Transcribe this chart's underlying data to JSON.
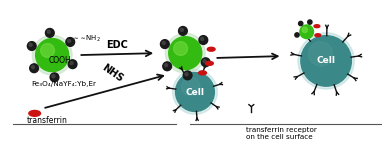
{
  "bg_color": "#ffffff",
  "np_green": "#33bb11",
  "np_green_hi": "#77dd44",
  "np_sat_color": "#1a1a1a",
  "np_sat_hi": "#444444",
  "np_glow": "#bbddbb",
  "cell_color": "#3a8888",
  "cell_hi": "#559999",
  "receptor_color": "#111111",
  "transferrin_color": "#cc1111",
  "arrow_color": "#111111",
  "text_color": "#111111",
  "label_edc": "EDC",
  "label_nhs": "NHS",
  "label_nh2": "~~~~NH₂",
  "label_cooh": "COOH",
  "label_formula": "Fe₃O₄/NaYF₄:Yb,Er",
  "label_transferrin": "transferrin",
  "label_receptor": "transferrin receptor\non the cell surface",
  "label_cell": "Cell",
  "figsize": [
    3.88,
    1.44
  ],
  "dpi": 100
}
